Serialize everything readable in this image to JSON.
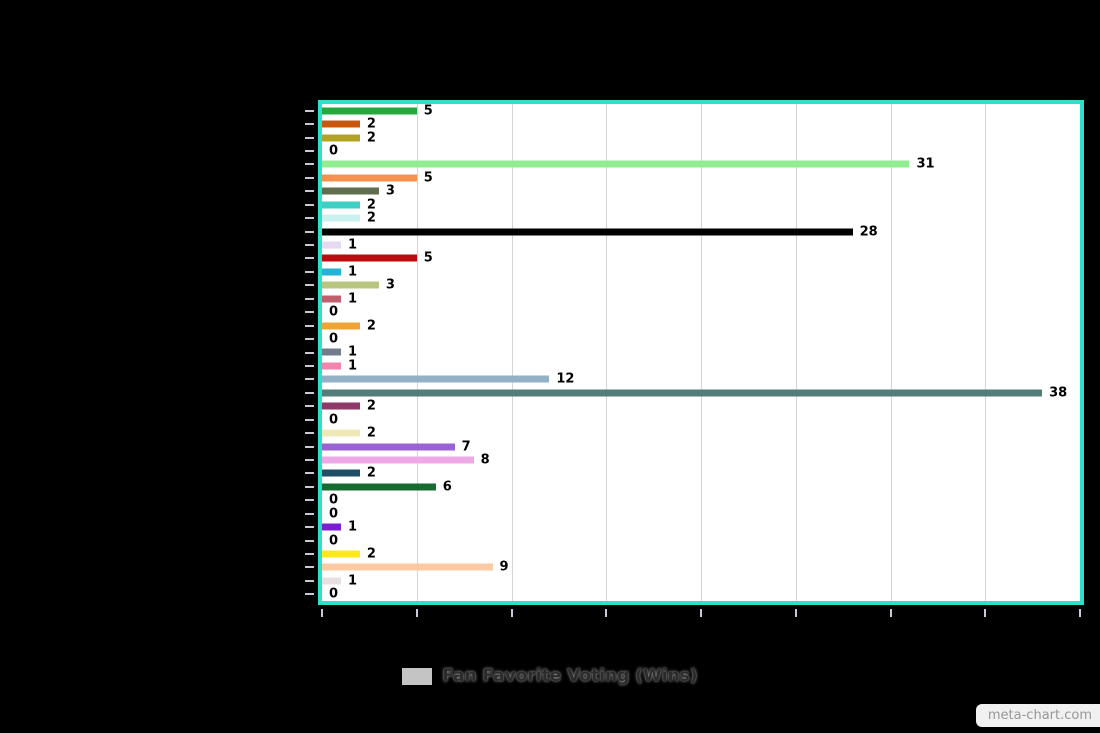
{
  "chart_data": {
    "type": "bar",
    "orientation": "horizontal",
    "title": "",
    "xlim": [
      0,
      40
    ],
    "x_gridline_step": 5,
    "grid": true,
    "category_labels_visible": false,
    "axis_tick_labels_visible": false,
    "legend": {
      "label": "Fan Favorite Voting (Wins)",
      "swatch_color": "#c4c4c4",
      "position": "bottom"
    },
    "plot_border_color": "#2ee0c9",
    "plot_background": "#ffffff",
    "page_background": "#000000",
    "series": [
      {
        "name": "Fan Favorite Voting (Wins)",
        "points": [
          {
            "value": 5,
            "color": "#22a83c"
          },
          {
            "value": 2,
            "color": "#c7590f"
          },
          {
            "value": 2,
            "color": "#b2a324"
          },
          {
            "value": 0,
            "color": null
          },
          {
            "value": 31,
            "color": "#90ee90"
          },
          {
            "value": 5,
            "color": "#f5914f"
          },
          {
            "value": 3,
            "color": "#5f6e4e"
          },
          {
            "value": 2,
            "color": "#3ecfc4"
          },
          {
            "value": 2,
            "color": "#c9f2ee"
          },
          {
            "value": 28,
            "color": "#000000"
          },
          {
            "value": 1,
            "color": "#e6d9f2"
          },
          {
            "value": 5,
            "color": "#bb0d0d"
          },
          {
            "value": 1,
            "color": "#22b3d6"
          },
          {
            "value": 3,
            "color": "#b8c780"
          },
          {
            "value": 1,
            "color": "#c05f6e"
          },
          {
            "value": 0,
            "color": null
          },
          {
            "value": 2,
            "color": "#f0a438"
          },
          {
            "value": 0,
            "color": null
          },
          {
            "value": 1,
            "color": "#707c8c"
          },
          {
            "value": 1,
            "color": "#f285ad"
          },
          {
            "value": 12,
            "color": "#92b1c4"
          },
          {
            "value": 38,
            "color": "#527e7a"
          },
          {
            "value": 2,
            "color": "#8e3a68"
          },
          {
            "value": 0,
            "color": null
          },
          {
            "value": 2,
            "color": "#efe9b7"
          },
          {
            "value": 7,
            "color": "#9a63d2"
          },
          {
            "value": 8,
            "color": "#eeaae6"
          },
          {
            "value": 2,
            "color": "#1d4f66"
          },
          {
            "value": 6,
            "color": "#176b31"
          },
          {
            "value": 0,
            "color": null
          },
          {
            "value": 0,
            "color": null
          },
          {
            "value": 1,
            "color": "#7a1fd0"
          },
          {
            "value": 0,
            "color": null
          },
          {
            "value": 2,
            "color": "#ffe81a"
          },
          {
            "value": 9,
            "color": "#fbc9a3"
          },
          {
            "value": 1,
            "color": "#e8e0e0"
          },
          {
            "value": 0,
            "color": null
          }
        ]
      }
    ]
  },
  "watermark": "meta-chart.com"
}
